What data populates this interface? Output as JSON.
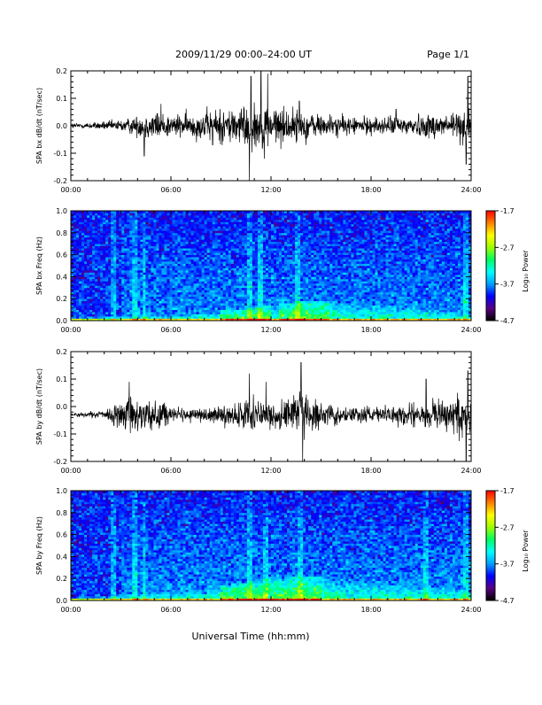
{
  "header": {
    "title": "2009/11/29  00:00–24:00 UT",
    "page": "Page 1/1"
  },
  "footer": {
    "xlabel": "Universal Time (hh:mm)"
  },
  "colorbar": {
    "label": "Log₁₀ Power",
    "ticks": [
      "-1.7",
      "-2.7",
      "-3.7",
      "-4.7"
    ],
    "range": [
      -4.7,
      -1.7
    ],
    "colors": [
      "#000000",
      "#5a0080",
      "#0000ff",
      "#00a0ff",
      "#00ffff",
      "#00ff60",
      "#a0ff00",
      "#ffff00",
      "#ff8000",
      "#ff0000"
    ]
  },
  "chart_data": [
    {
      "type": "line",
      "name": "bx-waveform",
      "ylabel": "SPA bx dB/dt (nT/sec)",
      "xlim": [
        0,
        24
      ],
      "ylim": [
        -0.2,
        0.2
      ],
      "xticks": [
        "00:00",
        "06:00",
        "12:00",
        "18:00",
        "24:00"
      ],
      "yticks": [
        "0.2",
        "0.1",
        "0.0",
        "-0.1",
        "-0.2"
      ],
      "activity_hours": [
        0,
        1,
        2,
        3,
        4,
        5,
        6,
        7,
        8,
        9,
        10,
        11,
        12,
        13,
        14,
        15,
        16,
        17,
        18,
        19,
        20,
        21,
        22,
        23,
        24
      ],
      "activity_amplitude": [
        0.01,
        0.01,
        0.015,
        0.02,
        0.035,
        0.05,
        0.04,
        0.04,
        0.05,
        0.06,
        0.07,
        0.08,
        0.07,
        0.06,
        0.05,
        0.04,
        0.035,
        0.03,
        0.03,
        0.03,
        0.035,
        0.04,
        0.045,
        0.05,
        0.06
      ],
      "spikes": [
        [
          4.4,
          -0.11
        ],
        [
          5.4,
          0.08
        ],
        [
          8.5,
          -0.07
        ],
        [
          10.7,
          -0.2
        ],
        [
          10.8,
          0.18
        ],
        [
          11.4,
          0.2
        ],
        [
          11.6,
          -0.12
        ],
        [
          11.8,
          0.19
        ],
        [
          13.7,
          0.09
        ],
        [
          14.1,
          -0.07
        ],
        [
          19.5,
          0.06
        ],
        [
          23.7,
          -0.14
        ],
        [
          23.8,
          0.18
        ]
      ],
      "baseline": 0.0
    },
    {
      "type": "heatmap",
      "name": "bx-spectrogram",
      "ylabel": "SPA bx Freq (Hz)",
      "xlim": [
        0,
        24
      ],
      "ylim": [
        0.0,
        1.0
      ],
      "xticks": [
        "00:00",
        "06:00",
        "12:00",
        "18:00",
        "24:00"
      ],
      "yticks": [
        "1.0",
        "0.8",
        "0.6",
        "0.4",
        "0.2",
        "0.0"
      ],
      "zlim": [
        -4.7,
        -1.7
      ],
      "band_hours": [
        0,
        2,
        4,
        6,
        8,
        10,
        12,
        14,
        16,
        18,
        20,
        22,
        24
      ],
      "band_top_hz": [
        0.03,
        0.04,
        0.06,
        0.06,
        0.08,
        0.1,
        0.14,
        0.18,
        0.18,
        0.16,
        0.13,
        0.1,
        0.08
      ],
      "band_peak_hours": [
        10.5,
        14.0
      ],
      "vertical_streaks_hours": [
        2.6,
        3.8,
        4.4,
        10.7,
        11.4,
        13.6,
        23.7
      ]
    },
    {
      "type": "line",
      "name": "by-waveform",
      "ylabel": "SPA by dB/dt (nT/sec)",
      "xlim": [
        0,
        24
      ],
      "ylim": [
        -0.2,
        0.2
      ],
      "xticks": [
        "00:00",
        "06:00",
        "12:00",
        "18:00",
        "24:00"
      ],
      "yticks": [
        "0.2",
        "0.1",
        "0.0",
        "-0.1",
        "-0.2"
      ],
      "activity_hours": [
        0,
        1,
        2,
        3,
        4,
        5,
        6,
        7,
        8,
        9,
        10,
        11,
        12,
        13,
        14,
        15,
        16,
        17,
        18,
        19,
        20,
        21,
        22,
        23,
        24
      ],
      "activity_amplitude": [
        0.008,
        0.008,
        0.015,
        0.05,
        0.07,
        0.06,
        0.03,
        0.02,
        0.025,
        0.03,
        0.045,
        0.05,
        0.04,
        0.06,
        0.07,
        0.04,
        0.03,
        0.025,
        0.025,
        0.03,
        0.04,
        0.05,
        0.06,
        0.07,
        0.07
      ],
      "spikes": [
        [
          3.5,
          0.09
        ],
        [
          4.0,
          -0.09
        ],
        [
          5.3,
          -0.08
        ],
        [
          10.7,
          -0.2
        ],
        [
          10.7,
          0.12
        ],
        [
          11.7,
          0.09
        ],
        [
          13.8,
          0.16
        ],
        [
          13.9,
          -0.2
        ],
        [
          21.3,
          0.1
        ],
        [
          23.7,
          -0.2
        ],
        [
          23.8,
          0.13
        ]
      ],
      "baseline": -0.03
    },
    {
      "type": "heatmap",
      "name": "by-spectrogram",
      "ylabel": "SPA by Freq (Hz)",
      "xlim": [
        0,
        24
      ],
      "ylim": [
        0.0,
        1.0
      ],
      "xticks": [
        "00:00",
        "06:00",
        "12:00",
        "18:00",
        "24:00"
      ],
      "yticks": [
        "1.0",
        "0.8",
        "0.6",
        "0.4",
        "0.2",
        "0.0"
      ],
      "zlim": [
        -4.7,
        -1.7
      ],
      "band_hours": [
        0,
        2,
        4,
        6,
        8,
        10,
        12,
        14,
        16,
        18,
        20,
        22,
        24
      ],
      "band_top_hz": [
        0.03,
        0.04,
        0.08,
        0.07,
        0.1,
        0.16,
        0.2,
        0.22,
        0.2,
        0.18,
        0.16,
        0.13,
        0.1
      ],
      "band_peak_hours": [
        10.5,
        13.5
      ],
      "vertical_streaks_hours": [
        2.6,
        3.8,
        4.4,
        10.7,
        11.7,
        13.8,
        21.3,
        23.7
      ]
    }
  ]
}
